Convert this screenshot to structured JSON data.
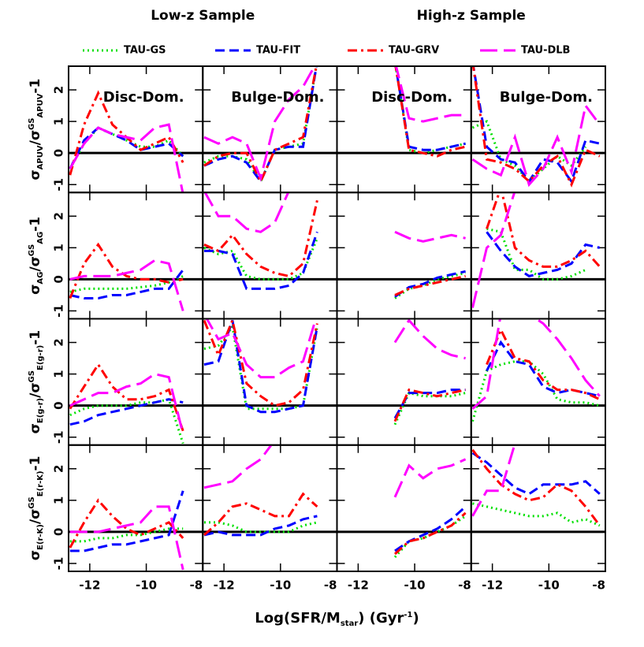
{
  "chart_data": {
    "type": "line",
    "column_titles": [
      "Low-z Sample",
      "High-z Sample"
    ],
    "series_styles": [
      {
        "name": "TAU-GS",
        "color": "#00e000",
        "dash": "2,4"
      },
      {
        "name": "TAU-FIT",
        "color": "#0000ff",
        "dash": "12,6"
      },
      {
        "name": "TAU-GRV",
        "color": "#ff0000",
        "dash": "12,5,3,5"
      },
      {
        "name": "TAU-DLB",
        "color": "#ff00ff",
        "dash": "22,8"
      }
    ],
    "xlabel": [
      {
        "t": "Log(SFR/M"
      },
      {
        "t": "star",
        "s": "sub"
      },
      {
        "t": ") (Gyr"
      },
      {
        "t": "-1",
        "s": "sup"
      },
      {
        "t": ")"
      }
    ],
    "xlim": [
      -12.75,
      -8
    ],
    "xticks": [
      -12,
      -10,
      -8
    ],
    "ylim": [
      -1.25,
      2.75
    ],
    "yticks": [
      -1,
      0,
      1,
      2
    ],
    "x": [
      -12.7,
      -12.2,
      -11.7,
      -11.2,
      -10.7,
      -10.2,
      -9.7,
      -9.2,
      -8.7,
      -8.2
    ],
    "rows": [
      {
        "ylabel": [
          {
            "t": "σ"
          },
          {
            "t": "APUV",
            "s": "sub"
          },
          {
            "t": "/σ"
          },
          {
            "t": "GS",
            "s": "sup"
          },
          {
            "t": "APUV",
            "s": "sub"
          },
          {
            "t": "-1"
          }
        ]
      },
      {
        "ylabel": [
          {
            "t": "σ"
          },
          {
            "t": "AG",
            "s": "sub"
          },
          {
            "t": "/σ"
          },
          {
            "t": "GS",
            "s": "sup"
          },
          {
            "t": "AG",
            "s": "sub"
          },
          {
            "t": "-1"
          }
        ]
      },
      {
        "ylabel": [
          {
            "t": "σ"
          },
          {
            "t": "E(g-r)",
            "s": "sub"
          },
          {
            "t": "/σ"
          },
          {
            "t": "GS",
            "s": "sup"
          },
          {
            "t": "E(g-r)",
            "s": "sub"
          },
          {
            "t": "-1"
          }
        ]
      },
      {
        "ylabel": [
          {
            "t": "σ"
          },
          {
            "t": "E(r-K)",
            "s": "sub"
          },
          {
            "t": "/σ"
          },
          {
            "t": "GS",
            "s": "sup"
          },
          {
            "t": "E(r-K)",
            "s": "sub"
          },
          {
            "t": "-1"
          }
        ]
      }
    ],
    "panels": [
      {
        "annotation": "Disc-Dom.",
        "series": [
          {
            "values": [
              -0.5,
              0.3,
              0.8,
              0.6,
              0.4,
              0.2,
              0.2,
              0.4,
              -0.1,
              null
            ]
          },
          {
            "values": [
              -0.5,
              0.4,
              0.8,
              0.6,
              0.4,
              0.1,
              0.2,
              0.3,
              -0.1,
              null
            ]
          },
          {
            "values": [
              -0.7,
              0.9,
              1.9,
              0.9,
              0.5,
              0.1,
              0.3,
              0.5,
              -0.3,
              null
            ]
          },
          {
            "values": [
              -0.5,
              0.3,
              0.8,
              0.6,
              0.5,
              0.4,
              0.8,
              0.9,
              -1.3,
              null
            ]
          }
        ]
      },
      {
        "annotation": "Bulge-Dom.",
        "series": [
          {
            "values": [
              -0.3,
              -0.1,
              -0.1,
              -0.2,
              -0.9,
              0.1,
              0.2,
              0.3,
              2.9,
              null
            ]
          },
          {
            "values": [
              -0.4,
              -0.2,
              -0.1,
              -0.3,
              -0.9,
              0.1,
              0.2,
              0.2,
              2.9,
              null
            ]
          },
          {
            "values": [
              -0.4,
              -0.1,
              0,
              0,
              -0.9,
              0.1,
              0.3,
              0.5,
              2.9,
              null
            ]
          },
          {
            "values": [
              0.5,
              0.3,
              0.5,
              0.3,
              -0.8,
              1.0,
              1.7,
              2.1,
              2.9,
              null
            ]
          }
        ]
      },
      {
        "annotation": "Disc-Dom.",
        "series": [
          {
            "values": [
              null,
              null,
              null,
              null,
              2.9,
              0.1,
              0,
              0.1,
              0.2,
              0.3
            ]
          },
          {
            "values": [
              null,
              null,
              null,
              null,
              2.9,
              0.2,
              0.1,
              0.1,
              0.2,
              0.3
            ]
          },
          {
            "values": [
              null,
              null,
              null,
              null,
              2.9,
              0.1,
              0,
              -0.1,
              0.1,
              0.2
            ]
          },
          {
            "values": [
              null,
              null,
              null,
              null,
              2.9,
              1.1,
              1.0,
              1.1,
              1.2,
              1.2
            ]
          }
        ]
      },
      {
        "annotation": "Bulge-Dom.",
        "series": [
          {
            "values": [
              0.8,
              1.0,
              -0.2,
              -0.4,
              -0.9,
              -0.5,
              -0.1,
              -0.4,
              0.2,
              null
            ]
          },
          {
            "values": [
              2.9,
              0.2,
              -0.2,
              -0.3,
              -0.9,
              -0.2,
              -0.3,
              -0.9,
              0.4,
              0.3
            ]
          },
          {
            "values": [
              2.9,
              -0.2,
              -0.3,
              -0.5,
              -0.9,
              -0.4,
              -0.1,
              -1.0,
              0.1,
              -0.1
            ]
          },
          {
            "values": [
              -0.2,
              -0.5,
              -0.7,
              0.5,
              -1.0,
              -0.5,
              0.5,
              -0.6,
              1.5,
              0.9
            ]
          }
        ]
      },
      {
        "series": [
          {
            "values": [
              -0.4,
              -0.3,
              -0.3,
              -0.3,
              -0.3,
              -0.25,
              -0.2,
              -0.1,
              0.1,
              null
            ]
          },
          {
            "values": [
              -0.5,
              -0.6,
              -0.6,
              -0.5,
              -0.5,
              -0.4,
              -0.3,
              -0.3,
              0.3,
              null
            ]
          },
          {
            "values": [
              -0.6,
              0.5,
              1.1,
              0.4,
              0.1,
              0,
              0,
              -0.1,
              0,
              null
            ]
          },
          {
            "values": [
              0,
              0.1,
              0.1,
              0.1,
              0.2,
              0.3,
              0.6,
              0.5,
              -1.0,
              null
            ]
          }
        ]
      },
      {
        "series": [
          {
            "values": [
              1.0,
              0.8,
              0.9,
              0.1,
              0,
              0,
              0,
              0.2,
              1.3,
              null
            ]
          },
          {
            "values": [
              0.9,
              0.9,
              0.8,
              -0.3,
              -0.3,
              -0.3,
              -0.2,
              0.2,
              1.5,
              null
            ]
          },
          {
            "values": [
              1.1,
              0.9,
              1.4,
              0.8,
              0.4,
              0.2,
              0.1,
              0.5,
              2.5,
              null
            ]
          },
          {
            "values": [
              2.8,
              2.0,
              2.0,
              1.6,
              1.5,
              1.8,
              2.8,
              null,
              null,
              null
            ]
          }
        ]
      },
      {
        "series": [
          {
            "values": [
              null,
              null,
              null,
              null,
              -0.6,
              -0.3,
              -0.2,
              0,
              0.1,
              0.2
            ]
          },
          {
            "values": [
              null,
              null,
              null,
              null,
              -0.55,
              -0.25,
              -0.15,
              0.05,
              0.15,
              0.25
            ]
          },
          {
            "values": [
              null,
              null,
              null,
              null,
              -0.5,
              -0.3,
              -0.2,
              -0.1,
              0,
              0.1
            ]
          },
          {
            "values": [
              null,
              null,
              null,
              null,
              1.5,
              1.3,
              1.2,
              1.3,
              1.4,
              1.3
            ]
          }
        ]
      },
      {
        "series": [
          {
            "values": [
              null,
              1.6,
              1.5,
              0.3,
              0.3,
              0,
              0,
              0.1,
              0.3,
              null
            ]
          },
          {
            "values": [
              null,
              1.5,
              0.9,
              0.4,
              0.1,
              0.2,
              0.3,
              0.5,
              1.1,
              1.0
            ]
          },
          {
            "values": [
              null,
              1.6,
              2.9,
              1.0,
              0.6,
              0.4,
              0.4,
              0.6,
              0.9,
              0.4
            ]
          },
          {
            "values": [
              -0.9,
              1.0,
              1.4,
              2.8,
              null,
              null,
              null,
              null,
              null,
              null
            ]
          }
        ]
      },
      {
        "series": [
          {
            "values": [
              -0.3,
              -0.1,
              0,
              0,
              0,
              0.1,
              0.1,
              0.2,
              -1.2,
              null
            ]
          },
          {
            "values": [
              -0.6,
              -0.5,
              -0.3,
              -0.2,
              -0.1,
              0,
              0.1,
              0.2,
              0.1,
              null
            ]
          },
          {
            "values": [
              -0.1,
              0.6,
              1.3,
              0.6,
              0.2,
              0.2,
              0.3,
              0.5,
              -0.8,
              null
            ]
          },
          {
            "values": [
              0,
              0.2,
              0.4,
              0.4,
              0.6,
              0.7,
              1.0,
              0.9,
              -0.9,
              null
            ]
          }
        ]
      },
      {
        "series": [
          {
            "values": [
              1.8,
              1.9,
              2.5,
              -0.1,
              -0.1,
              -0.1,
              -0.1,
              0,
              2.5,
              null
            ]
          },
          {
            "values": [
              1.3,
              1.4,
              2.7,
              0,
              -0.2,
              -0.2,
              -0.1,
              0,
              2.5,
              null
            ]
          },
          {
            "values": [
              2.7,
              1.6,
              2.7,
              0.7,
              0.3,
              0,
              0.1,
              0.5,
              2.6,
              null
            ]
          },
          {
            "values": [
              2.9,
              2.1,
              2.3,
              1.3,
              0.9,
              0.9,
              1.2,
              1.4,
              2.9,
              null
            ]
          }
        ]
      },
      {
        "series": [
          {
            "values": [
              null,
              null,
              null,
              null,
              -0.6,
              0.4,
              0.3,
              0.3,
              0.3,
              0.4
            ]
          },
          {
            "values": [
              null,
              null,
              null,
              null,
              -0.4,
              0.4,
              0.4,
              0.4,
              0.5,
              0.5
            ]
          },
          {
            "values": [
              null,
              null,
              null,
              null,
              -0.5,
              0.5,
              0.4,
              0.3,
              0.4,
              0.5
            ]
          },
          {
            "values": [
              null,
              null,
              null,
              null,
              2.0,
              2.7,
              2.2,
              1.8,
              1.6,
              1.5
            ]
          }
        ]
      },
      {
        "series": [
          {
            "values": [
              -0.5,
              1.1,
              1.3,
              1.4,
              1.4,
              1.0,
              0.2,
              0.1,
              0.1,
              0
            ]
          },
          {
            "values": [
              null,
              1.1,
              2.0,
              1.4,
              1.3,
              0.6,
              0.4,
              0.5,
              0.4,
              0.3
            ]
          },
          {
            "values": [
              null,
              1.3,
              2.4,
              1.5,
              1.4,
              0.8,
              0.5,
              0.5,
              0.4,
              0.2
            ]
          },
          {
            "values": [
              -0.1,
              0.3,
              2.9,
              2.9,
              2.9,
              2.6,
              2.1,
              1.5,
              0.8,
              0.3
            ]
          }
        ]
      },
      {
        "series": [
          {
            "values": [
              -0.3,
              -0.3,
              -0.2,
              -0.2,
              -0.1,
              -0.1,
              0,
              0.1,
              0.1,
              null
            ]
          },
          {
            "values": [
              -0.6,
              -0.6,
              -0.5,
              -0.4,
              -0.4,
              -0.3,
              -0.2,
              -0.1,
              1.3,
              null
            ]
          },
          {
            "values": [
              -0.5,
              0.3,
              1.0,
              0.5,
              0.1,
              -0.1,
              0.1,
              0.3,
              -0.2,
              null
            ]
          },
          {
            "values": [
              0,
              0,
              0,
              0.1,
              0.2,
              0.3,
              0.8,
              0.8,
              -1.2,
              null
            ]
          }
        ]
      },
      {
        "series": [
          {
            "values": [
              0.3,
              0.3,
              0.2,
              0,
              0,
              0,
              0,
              0.2,
              0.3,
              null
            ]
          },
          {
            "values": [
              -0.1,
              0,
              -0.1,
              -0.1,
              -0.1,
              0.1,
              0.2,
              0.4,
              0.5,
              null
            ]
          },
          {
            "values": [
              -0.1,
              0.3,
              0.8,
              0.9,
              0.7,
              0.5,
              0.5,
              1.2,
              0.8,
              null
            ]
          },
          {
            "values": [
              1.4,
              1.5,
              1.6,
              2.0,
              2.3,
              2.9,
              null,
              null,
              null,
              null
            ]
          }
        ]
      },
      {
        "series": [
          {
            "values": [
              null,
              null,
              null,
              null,
              -0.8,
              -0.3,
              -0.2,
              0,
              0.2,
              0.5
            ]
          },
          {
            "values": [
              null,
              null,
              null,
              null,
              -0.6,
              -0.3,
              -0.1,
              0.1,
              0.4,
              0.8
            ]
          },
          {
            "values": [
              null,
              null,
              null,
              null,
              -0.7,
              -0.3,
              -0.2,
              0,
              0.2,
              0.6
            ]
          },
          {
            "values": [
              null,
              null,
              null,
              null,
              1.1,
              2.1,
              1.7,
              2.0,
              2.1,
              2.3
            ]
          }
        ]
      },
      {
        "series": [
          {
            "values": [
              0.9,
              0.8,
              0.7,
              0.6,
              0.5,
              0.5,
              0.6,
              0.3,
              0.4,
              0.2
            ]
          },
          {
            "values": [
              2.5,
              2.2,
              1.8,
              1.4,
              1.2,
              1.5,
              1.5,
              1.5,
              1.6,
              1.2
            ]
          },
          {
            "values": [
              2.6,
              2.0,
              1.5,
              1.2,
              1.0,
              1.1,
              1.5,
              1.3,
              0.8,
              0.2
            ]
          },
          {
            "values": [
              0.5,
              1.3,
              1.3,
              2.8,
              null,
              null,
              null,
              null,
              null,
              null
            ]
          }
        ]
      }
    ]
  }
}
